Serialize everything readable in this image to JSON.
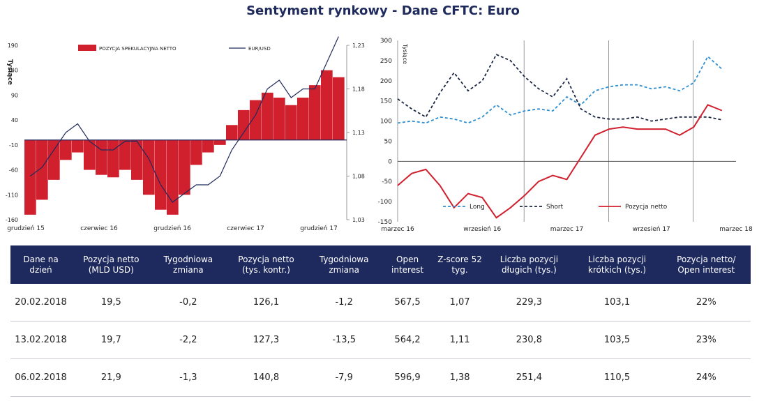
{
  "title": "Sentyment rynkowy - Dane CFTC:  Euro",
  "chart_data": [
    {
      "type": "bar+line",
      "ylabel": "Tysiące",
      "legend": [
        "POZYCJA SPEKULACYJNA NETTO",
        "EUR/USD"
      ],
      "legend_placement": "top",
      "colors": {
        "bars": "#d0202e",
        "line": "#1f2a5c"
      },
      "y_left_ticks": [
        190,
        140,
        90,
        40,
        -10,
        -60,
        -110,
        -160
      ],
      "ylim_left": [
        -160,
        190
      ],
      "y_right_ticks": [
        "1,23",
        "1,18",
        "1,13",
        "1,08",
        "1,03"
      ],
      "ylim_right": [
        1.03,
        1.23
      ],
      "x_ticks": [
        "grudzień 15",
        "czerwiec 16",
        "grudzień 16",
        "czerwiec 17",
        "grudzień 17"
      ],
      "series": [
        {
          "name": "POZYCJA SPEKULACYJNA NETTO",
          "x": [
            "2015-12",
            "2016-01",
            "2016-02",
            "2016-03",
            "2016-04",
            "2016-05",
            "2016-06",
            "2016-07",
            "2016-08",
            "2016-09",
            "2016-10",
            "2016-11",
            "2016-12",
            "2017-01",
            "2017-02",
            "2017-03",
            "2017-04",
            "2017-05",
            "2017-06",
            "2017-07",
            "2017-08",
            "2017-09",
            "2017-10",
            "2017-11",
            "2017-12",
            "2018-01",
            "2018-02"
          ],
          "values": [
            -150,
            -120,
            -80,
            -40,
            -25,
            -60,
            -70,
            -75,
            -60,
            -80,
            -110,
            -140,
            -150,
            -110,
            -50,
            -25,
            -10,
            30,
            60,
            80,
            95,
            85,
            70,
            85,
            110,
            140,
            126
          ]
        },
        {
          "name": "EUR/USD",
          "x": [
            "2015-12",
            "2016-01",
            "2016-02",
            "2016-03",
            "2016-04",
            "2016-05",
            "2016-06",
            "2016-07",
            "2016-08",
            "2016-09",
            "2016-10",
            "2016-11",
            "2016-12",
            "2017-01",
            "2017-02",
            "2017-03",
            "2017-04",
            "2017-05",
            "2017-06",
            "2017-07",
            "2017-08",
            "2017-09",
            "2017-10",
            "2017-11",
            "2017-12",
            "2018-01",
            "2018-02"
          ],
          "values": [
            1.08,
            1.09,
            1.11,
            1.13,
            1.14,
            1.12,
            1.11,
            1.11,
            1.12,
            1.12,
            1.1,
            1.07,
            1.05,
            1.06,
            1.07,
            1.07,
            1.08,
            1.11,
            1.13,
            1.15,
            1.18,
            1.19,
            1.17,
            1.18,
            1.18,
            1.21,
            1.24
          ]
        }
      ]
    },
    {
      "type": "line",
      "ylabel": "Tysiące",
      "ylim": [
        -150,
        300
      ],
      "y_ticks": [
        300,
        250,
        200,
        150,
        100,
        50,
        0,
        -50,
        -100,
        -150
      ],
      "x_ticks": [
        "marzec 16",
        "wrzesień 16",
        "marzec 17",
        "wrzesień 17",
        "marzec 18"
      ],
      "grid": "vertical",
      "legend_placement": "bottom",
      "series": [
        {
          "name": "Long",
          "color": "#2e8fd0",
          "dash": true,
          "x": [
            "2016-03",
            "2016-04",
            "2016-05",
            "2016-06",
            "2016-07",
            "2016-08",
            "2016-09",
            "2016-10",
            "2016-11",
            "2016-12",
            "2017-01",
            "2017-02",
            "2017-03",
            "2017-04",
            "2017-05",
            "2017-06",
            "2017-07",
            "2017-08",
            "2017-09",
            "2017-10",
            "2017-11",
            "2017-12",
            "2018-01",
            "2018-02"
          ],
          "values": [
            95,
            100,
            95,
            110,
            105,
            95,
            110,
            140,
            115,
            125,
            130,
            125,
            160,
            140,
            175,
            185,
            190,
            190,
            180,
            185,
            175,
            195,
            260,
            229
          ]
        },
        {
          "name": "Short",
          "color": "#1a2540",
          "dash": true,
          "x": [
            "2016-03",
            "2016-04",
            "2016-05",
            "2016-06",
            "2016-07",
            "2016-08",
            "2016-09",
            "2016-10",
            "2016-11",
            "2016-12",
            "2017-01",
            "2017-02",
            "2017-03",
            "2017-04",
            "2017-05",
            "2017-06",
            "2017-07",
            "2017-08",
            "2017-09",
            "2017-10",
            "2017-11",
            "2017-12",
            "2018-01",
            "2018-02"
          ],
          "values": [
            155,
            130,
            110,
            170,
            220,
            175,
            200,
            265,
            250,
            210,
            180,
            160,
            205,
            130,
            110,
            105,
            105,
            110,
            100,
            105,
            110,
            110,
            110,
            103
          ]
        },
        {
          "name": "Pozycja netto",
          "color": "#d0202e",
          "dash": false,
          "x": [
            "2016-03",
            "2016-04",
            "2016-05",
            "2016-06",
            "2016-07",
            "2016-08",
            "2016-09",
            "2016-10",
            "2016-11",
            "2016-12",
            "2017-01",
            "2017-02",
            "2017-03",
            "2017-04",
            "2017-05",
            "2017-06",
            "2017-07",
            "2017-08",
            "2017-09",
            "2017-10",
            "2017-11",
            "2017-12",
            "2018-01",
            "2018-02"
          ],
          "values": [
            -60,
            -30,
            -20,
            -60,
            -115,
            -80,
            -90,
            -140,
            -115,
            -85,
            -50,
            -35,
            -45,
            10,
            65,
            80,
            85,
            80,
            80,
            80,
            65,
            85,
            140,
            126
          ]
        }
      ]
    }
  ],
  "table": {
    "headers": [
      "Dane na dzień",
      "Pozycja netto (MLD USD)",
      "Tygodniowa zmiana",
      "Pozycja netto (tys. kontr.)",
      "Tygodniowa zmiana",
      "Open interest",
      "Z-score 52 tyg.",
      "Liczba pozycji długich (tys.)",
      "Liczba pozycji krótkich (tys.)",
      "Pozycja netto/ Open interest"
    ],
    "rows": [
      [
        "20.02.2018",
        "19,5",
        "-0,2",
        "126,1",
        "-1,2",
        "567,5",
        "1,07",
        "229,3",
        "103,1",
        "22%"
      ],
      [
        "13.02.2018",
        "19,7",
        "-2,2",
        "127,3",
        "-13,5",
        "564,2",
        "1,11",
        "230,8",
        "103,5",
        "23%"
      ],
      [
        "06.02.2018",
        "21,9",
        "-1,3",
        "140,8",
        "-7,9",
        "596,9",
        "1,38",
        "251,4",
        "110,5",
        "24%"
      ]
    ]
  }
}
